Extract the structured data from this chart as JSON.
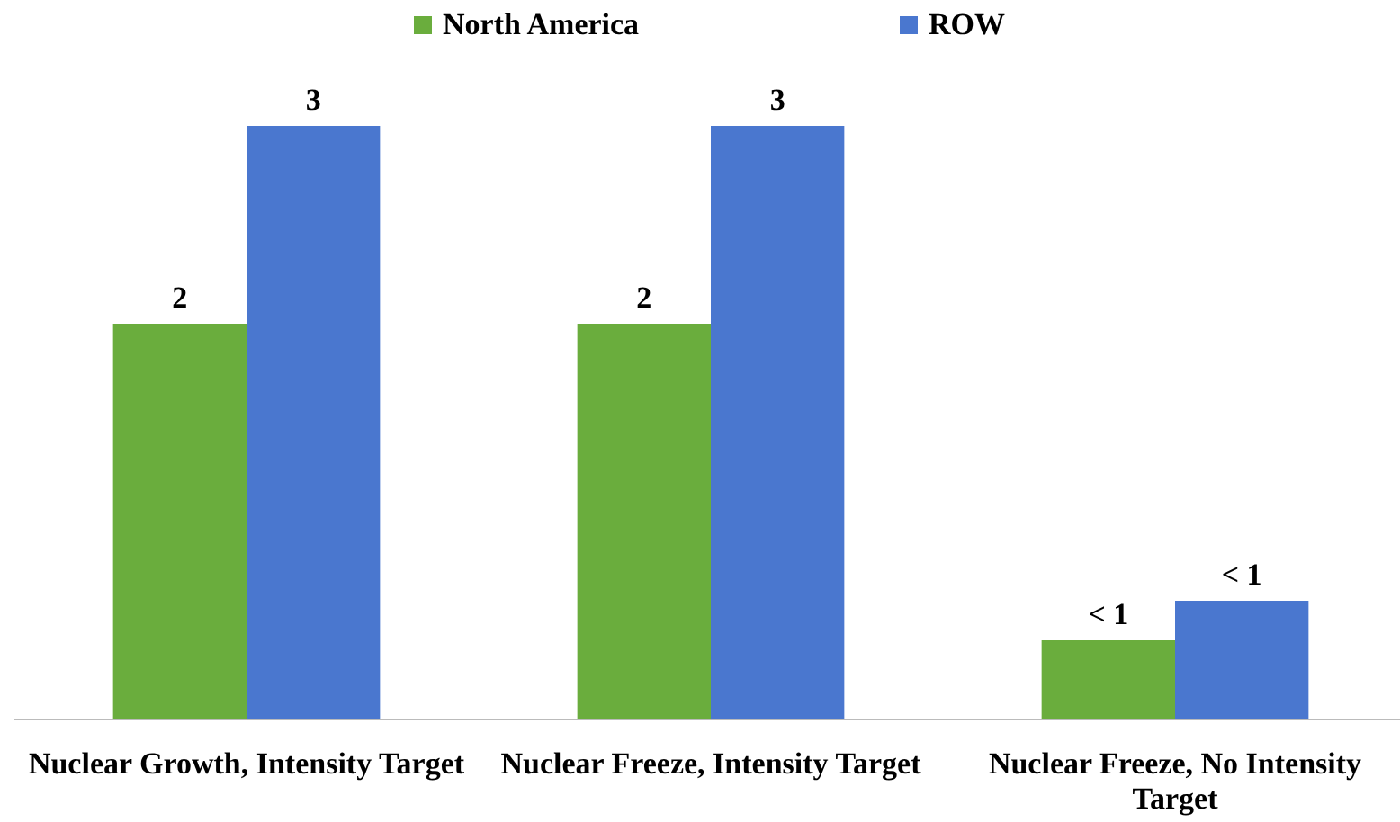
{
  "chart_data": {
    "type": "bar",
    "categories": [
      "Nuclear Growth, Intensity Target",
      "Nuclear Freeze, Intensity Target",
      "Nuclear Freeze, No Intensity Target"
    ],
    "series": [
      {
        "name": "North America",
        "color": "#6aad3d",
        "values": [
          2,
          2,
          0.4
        ],
        "value_labels": [
          "2",
          "2",
          "< 1"
        ]
      },
      {
        "name": "ROW",
        "color": "#4a77cf",
        "values": [
          3,
          3,
          0.6
        ],
        "value_labels": [
          "3",
          "3",
          "< 1"
        ]
      }
    ],
    "ylim": [
      0,
      3
    ],
    "tick_labels": "x",
    "legend": "top"
  }
}
